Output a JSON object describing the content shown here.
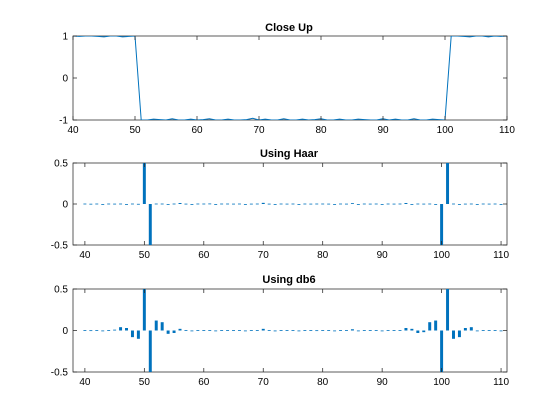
{
  "chart_data": [
    {
      "type": "line",
      "title": "Close Up",
      "xlim": [
        40,
        110
      ],
      "ylim": [
        -1,
        1
      ],
      "xticks": [
        "40",
        "50",
        "60",
        "70",
        "80",
        "90",
        "100",
        "110"
      ],
      "yticks": [
        "-1",
        "0",
        "1"
      ],
      "color": "#0072BD",
      "series": [
        {
          "x": [
            40,
            41,
            42,
            43,
            44,
            45,
            46,
            47,
            48,
            49,
            50,
            51,
            52,
            53,
            54,
            55,
            56,
            57,
            58,
            59,
            60,
            61,
            62,
            63,
            64,
            65,
            66,
            67,
            68,
            69,
            70,
            71,
            72,
            73,
            74,
            75,
            76,
            77,
            78,
            79,
            80,
            81,
            82,
            83,
            84,
            85,
            86,
            87,
            88,
            89,
            90,
            91,
            92,
            93,
            94,
            95,
            96,
            97,
            98,
            99,
            100,
            101,
            102,
            103,
            104,
            105,
            106,
            107,
            108,
            109,
            110
          ],
          "y": [
            1,
            0.99,
            1,
            1,
            0.99,
            0.98,
            1,
            1,
            0.98,
            0.99,
            1,
            -1,
            -1,
            -0.98,
            -0.99,
            -1,
            -0.97,
            -1,
            -1,
            -0.98,
            -1,
            -0.99,
            -0.97,
            -1,
            -1,
            -0.98,
            -1,
            -1,
            -0.99,
            -0.96,
            -1,
            -0.98,
            -1,
            -1,
            -0.97,
            -1,
            -1,
            -0.98,
            -1,
            -0.99,
            -0.97,
            -1,
            -1,
            -0.98,
            -1,
            -1,
            -0.98,
            -0.99,
            -1,
            -1,
            -0.97,
            -1,
            -0.98,
            -1,
            -1,
            -0.97,
            -1,
            -1,
            -0.98,
            -0.99,
            -1,
            1,
            1,
            0.99,
            0.98,
            1,
            1,
            0.98,
            1,
            0.99,
            1
          ]
        }
      ]
    },
    {
      "type": "bar",
      "title": "Using Haar",
      "xlim": [
        38,
        111
      ],
      "ylim": [
        -0.5,
        0.5
      ],
      "xticks": [
        "40",
        "50",
        "60",
        "70",
        "80",
        "90",
        "100",
        "110"
      ],
      "yticks": [
        "-0.5",
        "0",
        "0.5"
      ],
      "color": "#0072BD",
      "series": [
        {
          "x": [
            40,
            41,
            42,
            43,
            44,
            45,
            46,
            47,
            48,
            49,
            50,
            51,
            52,
            53,
            54,
            55,
            56,
            57,
            58,
            59,
            60,
            61,
            62,
            63,
            64,
            65,
            66,
            67,
            68,
            69,
            70,
            71,
            72,
            73,
            74,
            75,
            76,
            77,
            78,
            79,
            80,
            81,
            82,
            83,
            84,
            85,
            86,
            87,
            88,
            89,
            90,
            91,
            92,
            93,
            94,
            95,
            96,
            97,
            98,
            99,
            100,
            101,
            102,
            103,
            104,
            105,
            106,
            107,
            108,
            109,
            110
          ],
          "y": [
            0,
            0.003,
            0,
            -0.003,
            0,
            0.004,
            0,
            -0.004,
            0,
            0.002,
            0.52,
            -0.52,
            0.005,
            0,
            -0.004,
            0,
            0.012,
            0.004,
            -0.006,
            0.005,
            0,
            0.006,
            -0.004,
            0,
            0,
            0.004,
            0,
            -0.004,
            0.004,
            0,
            0.014,
            0.004,
            -0.008,
            0,
            0.004,
            0,
            -0.004,
            0,
            0.004,
            0,
            0,
            0.004,
            -0.004,
            0,
            0.004,
            0.01,
            -0.004,
            0,
            0.004,
            0,
            -0.004,
            0,
            0.004,
            0,
            0.012,
            -0.008,
            0,
            0.004,
            0,
            -0.004,
            -0.52,
            0.52,
            0,
            -0.004,
            0.004,
            0,
            -0.004,
            0,
            0.004,
            0,
            -0.003
          ]
        }
      ]
    },
    {
      "type": "bar",
      "title": "Using db6",
      "xlim": [
        38,
        111
      ],
      "ylim": [
        -0.5,
        0.5
      ],
      "xticks": [
        "40",
        "50",
        "60",
        "70",
        "80",
        "90",
        "100",
        "110"
      ],
      "yticks": [
        "-0.5",
        "0",
        "0.5"
      ],
      "color": "#0072BD",
      "series": [
        {
          "x": [
            40,
            41,
            42,
            43,
            44,
            45,
            46,
            47,
            48,
            49,
            50,
            51,
            52,
            53,
            54,
            55,
            56,
            57,
            58,
            59,
            60,
            61,
            62,
            63,
            64,
            65,
            66,
            67,
            68,
            69,
            70,
            71,
            72,
            73,
            74,
            75,
            76,
            77,
            78,
            79,
            80,
            81,
            82,
            83,
            84,
            85,
            86,
            87,
            88,
            89,
            90,
            91,
            92,
            93,
            94,
            95,
            96,
            97,
            98,
            99,
            100,
            101,
            102,
            103,
            104,
            105,
            106,
            107,
            108,
            109,
            110
          ],
          "y": [
            0,
            0.003,
            0,
            -0.003,
            0.004,
            0.01,
            0.04,
            0.03,
            -0.08,
            -0.1,
            0.52,
            -0.52,
            0.12,
            0.1,
            -0.04,
            -0.03,
            0.02,
            0.004,
            -0.006,
            0.004,
            0,
            0.005,
            -0.005,
            0,
            0.004,
            0.004,
            0,
            -0.005,
            0.005,
            0,
            0.02,
            0.004,
            -0.01,
            0,
            0.004,
            0,
            -0.005,
            0,
            0.004,
            0.003,
            0,
            0.004,
            -0.005,
            0,
            0.004,
            0.015,
            -0.005,
            0,
            0.004,
            0,
            -0.004,
            0,
            0.004,
            0,
            0.03,
            0.02,
            -0.03,
            -0.02,
            0.1,
            0.12,
            -0.52,
            0.52,
            -0.1,
            -0.08,
            0.03,
            0.04,
            -0.006,
            0,
            0.004,
            0,
            -0.003
          ]
        }
      ]
    }
  ]
}
